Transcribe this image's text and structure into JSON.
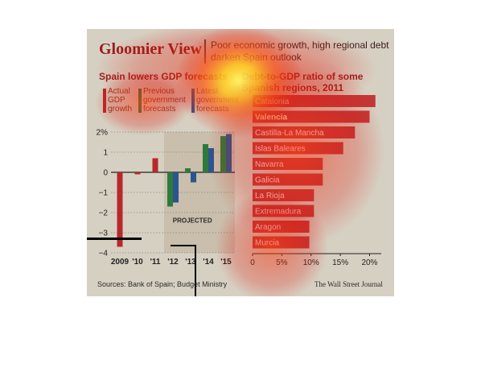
{
  "header": {
    "title": "Gloomier View",
    "subtitle": "Poor economic growth, high regional debt darken Spain outlook"
  },
  "footer": {
    "source": "Sources: Bank of Spain; Budget Ministry",
    "credit": "The Wall Street Journal"
  },
  "colors": {
    "actual": "#b8282a",
    "previous": "#2e7a3a",
    "latest": "#2a5590",
    "debt": "#c0292b",
    "highlight": "#e2cc2a"
  },
  "chart_data": [
    {
      "type": "bar",
      "title": "Spain lowers GDP forecasts",
      "legend": [
        "Actual GDP growth",
        "Previous government forecasts",
        "Latest government forecasts"
      ],
      "categories": [
        "2009",
        "'10",
        "'11",
        "'12",
        "'13",
        "'14",
        "'15"
      ],
      "annotation": "PROJECTED",
      "ylim": [
        -4,
        2
      ],
      "yticks": [
        "2%",
        "1",
        "0",
        "−1",
        "−2",
        "−3",
        "−4"
      ],
      "series": [
        {
          "name": "Actual GDP growth",
          "values": [
            -3.7,
            -0.1,
            0.7,
            null,
            null,
            null,
            null
          ]
        },
        {
          "name": "Previous government forecasts",
          "values": [
            null,
            null,
            null,
            -1.7,
            0.2,
            1.4,
            1.8
          ]
        },
        {
          "name": "Latest government forecasts",
          "values": [
            null,
            null,
            null,
            -1.5,
            -0.5,
            1.2,
            1.9
          ]
        }
      ]
    },
    {
      "type": "bar",
      "orientation": "horizontal",
      "title": "Debt-to-GDP ratio of some Spanish regions, 2011",
      "categories": [
        "Catalonia",
        "Valencia",
        "Castilla-La Mancha",
        "Islas Baleares",
        "Navarra",
        "Galicia",
        "La Rioja",
        "Extremadura",
        "Aragon",
        "Murcia"
      ],
      "values": [
        21,
        20,
        17.5,
        15.5,
        12,
        12,
        10.5,
        10.5,
        9.7,
        9.7
      ],
      "xlim": [
        0,
        22
      ],
      "xticks": [
        "0",
        "5%",
        "10%",
        "15%",
        "20%"
      ]
    }
  ]
}
